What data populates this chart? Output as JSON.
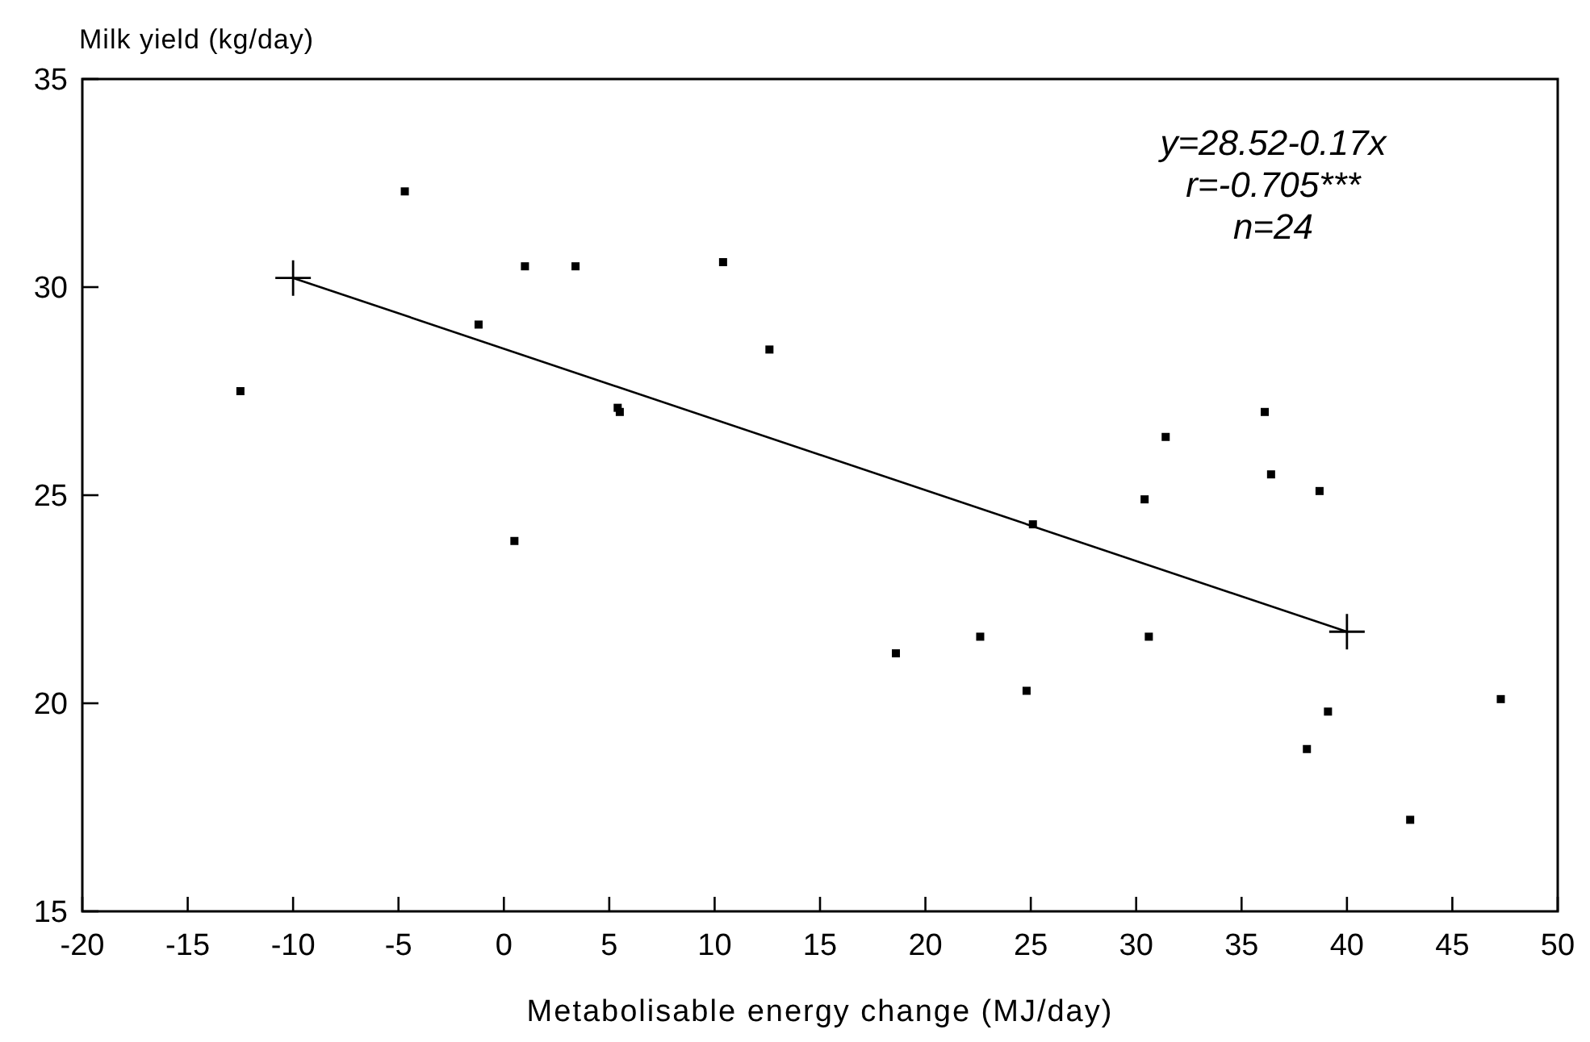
{
  "chart_data": {
    "type": "scatter",
    "xlabel": "Metabolisable energy change (MJ/day)",
    "ylabel": "Milk yield (kg/day)",
    "xlim": [
      -20,
      50
    ],
    "xticks": [
      -20,
      -15,
      -10,
      -5,
      0,
      5,
      10,
      15,
      20,
      25,
      30,
      35,
      40,
      45,
      50
    ],
    "ylim": [
      15,
      35
    ],
    "yticks": [
      15,
      20,
      25,
      30,
      35
    ],
    "grid": false,
    "annotations": [
      "y=28.52-0.17x",
      "r=-0.705***",
      "n=24"
    ],
    "series": [
      {
        "color": "#000000",
        "marker": "square",
        "x": [
          -12.5,
          -4.7,
          -1.2,
          1.0,
          3.4,
          10.4,
          12.6,
          5.4,
          5.5,
          0.5,
          36.1,
          31.4,
          36.4,
          30.4,
          38.7,
          25.1,
          18.6,
          22.6,
          30.6,
          24.8,
          39.1,
          38.1,
          43.0,
          47.3
        ],
        "values": [
          27.5,
          32.3,
          29.1,
          30.5,
          30.5,
          30.6,
          28.5,
          27.1,
          27.0,
          23.9,
          27.0,
          26.4,
          25.5,
          24.9,
          25.1,
          24.3,
          21.2,
          21.6,
          21.6,
          20.3,
          19.8,
          18.9,
          17.2,
          20.1
        ]
      },
      {
        "type": "line",
        "color": "#000000",
        "marker": "cross",
        "line_style": "solid",
        "x": [
          -10,
          40
        ],
        "values": [
          30.22,
          21.72
        ]
      }
    ]
  }
}
